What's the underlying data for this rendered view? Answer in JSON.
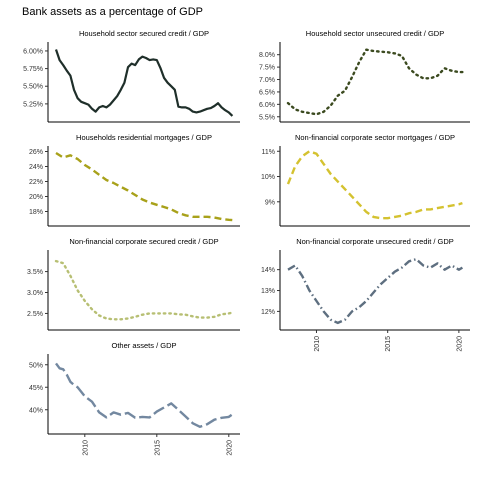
{
  "chart_data": {
    "type": "line",
    "title": "Bank assets as a percentage of GDP",
    "x_ticks": [
      "2010",
      "2015",
      "2020"
    ],
    "x_range": [
      2008,
      2020.5
    ],
    "panels": [
      {
        "title": "Household sector secured credit / GDP",
        "color": "#1f2f2a",
        "dash": "solid",
        "ylim": [
          5.05,
          6.07
        ],
        "y_ticks": [
          5.25,
          5.5,
          5.75,
          6.0
        ],
        "y_tick_labels": [
          "5.25%",
          "5.50%",
          "5.75%",
          "6.00%"
        ],
        "x": [
          2008.0,
          2008.25,
          2008.5,
          2008.75,
          2009.0,
          2009.25,
          2009.5,
          2009.75,
          2010.0,
          2010.25,
          2010.5,
          2010.75,
          2011.0,
          2011.25,
          2011.5,
          2011.75,
          2012.0,
          2012.25,
          2012.5,
          2012.75,
          2013.0,
          2013.25,
          2013.5,
          2013.75,
          2014.0,
          2014.25,
          2014.5,
          2014.75,
          2015.0,
          2015.25,
          2015.5,
          2015.75,
          2016.0,
          2016.25,
          2016.5,
          2016.75,
          2017.0,
          2017.25,
          2017.5,
          2017.75,
          2018.0,
          2018.25,
          2018.5,
          2018.75,
          2019.0,
          2019.25,
          2019.5,
          2019.75,
          2020.0,
          2020.25
        ],
        "values": [
          6.02,
          5.87,
          5.8,
          5.72,
          5.65,
          5.45,
          5.33,
          5.28,
          5.26,
          5.24,
          5.18,
          5.14,
          5.2,
          5.22,
          5.2,
          5.24,
          5.3,
          5.36,
          5.45,
          5.55,
          5.77,
          5.82,
          5.8,
          5.88,
          5.92,
          5.9,
          5.87,
          5.88,
          5.87,
          5.76,
          5.62,
          5.55,
          5.5,
          5.45,
          5.21,
          5.2,
          5.2,
          5.18,
          5.14,
          5.13,
          5.14,
          5.16,
          5.18,
          5.19,
          5.22,
          5.26,
          5.2,
          5.16,
          5.13,
          5.08
        ]
      },
      {
        "title": "Household sector unsecured credit / GDP",
        "color": "#3b4a1f",
        "dash": "dotted",
        "ylim": [
          5.45,
          8.35
        ],
        "y_ticks": [
          5.5,
          6.0,
          6.5,
          7.0,
          7.5,
          8.0
        ],
        "y_tick_labels": [
          "5.5%",
          "6.0%",
          "6.5%",
          "7.0%",
          "7.5%",
          "8.0%"
        ],
        "x": [
          2008.0,
          2008.5,
          2009.0,
          2009.5,
          2010.0,
          2010.5,
          2011.0,
          2011.5,
          2012.0,
          2012.5,
          2013.0,
          2013.5,
          2014.0,
          2014.5,
          2015.0,
          2015.5,
          2016.0,
          2016.5,
          2017.0,
          2017.5,
          2018.0,
          2018.5,
          2019.0,
          2019.5,
          2020.0,
          2020.25
        ],
        "values": [
          6.05,
          5.8,
          5.7,
          5.65,
          5.6,
          5.7,
          5.95,
          6.35,
          6.55,
          7.1,
          7.7,
          8.2,
          8.15,
          8.12,
          8.1,
          8.05,
          7.95,
          7.45,
          7.2,
          7.05,
          7.05,
          7.15,
          7.45,
          7.35,
          7.3,
          7.3
        ]
      },
      {
        "title": "Households residential mortgages / GDP",
        "color": "#a8a11a",
        "dash": "dashed",
        "ylim": [
          16.6,
          26.2
        ],
        "y_ticks": [
          18,
          20,
          22,
          24,
          26
        ],
        "y_tick_labels": [
          "18%",
          "20%",
          "22%",
          "24%",
          "26%"
        ],
        "x": [
          2008.0,
          2008.5,
          2009.0,
          2009.5,
          2010.0,
          2010.5,
          2011.0,
          2011.5,
          2012.0,
          2012.5,
          2013.0,
          2013.5,
          2014.0,
          2014.5,
          2015.0,
          2015.5,
          2016.0,
          2016.5,
          2017.0,
          2017.5,
          2018.0,
          2018.5,
          2019.0,
          2019.5,
          2020.0,
          2020.25
        ],
        "values": [
          25.8,
          25.2,
          25.5,
          25.0,
          24.2,
          23.6,
          22.9,
          22.2,
          21.8,
          21.3,
          20.8,
          20.2,
          19.6,
          19.2,
          18.9,
          18.6,
          18.3,
          17.8,
          17.5,
          17.3,
          17.3,
          17.3,
          17.2,
          17.0,
          16.9,
          16.85
        ]
      },
      {
        "title": "Non-financial corporate sector mortgages / GDP",
        "color": "#d4c230",
        "dash": "dashed",
        "ylim": [
          8.2,
          11.05
        ],
        "y_ticks": [
          9,
          10,
          11
        ],
        "y_tick_labels": [
          "9%",
          "10%",
          "11%"
        ],
        "x": [
          2008.0,
          2008.5,
          2009.0,
          2009.5,
          2010.0,
          2010.5,
          2011.0,
          2011.5,
          2012.0,
          2012.5,
          2013.0,
          2013.5,
          2014.0,
          2014.5,
          2015.0,
          2015.5,
          2016.0,
          2016.5,
          2017.0,
          2017.5,
          2018.0,
          2018.5,
          2019.0,
          2019.5,
          2020.0,
          2020.25
        ],
        "values": [
          9.7,
          10.4,
          10.8,
          11.0,
          10.9,
          10.5,
          10.1,
          9.8,
          9.5,
          9.2,
          8.9,
          8.6,
          8.4,
          8.35,
          8.35,
          8.4,
          8.45,
          8.55,
          8.6,
          8.7,
          8.7,
          8.75,
          8.8,
          8.85,
          8.9,
          8.95
        ]
      },
      {
        "title": "Non-financial corporate secured credit / GDP",
        "color": "#b7bf73",
        "dash": "dotted",
        "ylim": [
          2.2,
          3.92
        ],
        "y_ticks": [
          2.5,
          3.0,
          3.5
        ],
        "y_tick_labels": [
          "2.5%",
          "3.0%",
          "3.5%"
        ],
        "x": [
          2008.0,
          2008.5,
          2009.0,
          2009.5,
          2010.0,
          2010.5,
          2011.0,
          2011.5,
          2012.0,
          2012.5,
          2013.0,
          2013.5,
          2014.0,
          2014.5,
          2015.0,
          2015.5,
          2016.0,
          2016.5,
          2017.0,
          2017.5,
          2018.0,
          2018.5,
          2019.0,
          2019.5,
          2020.0,
          2020.25
        ],
        "values": [
          3.75,
          3.7,
          3.4,
          3.05,
          2.8,
          2.6,
          2.45,
          2.38,
          2.36,
          2.36,
          2.38,
          2.42,
          2.47,
          2.5,
          2.5,
          2.5,
          2.5,
          2.48,
          2.47,
          2.43,
          2.4,
          2.4,
          2.42,
          2.48,
          2.5,
          2.52
        ]
      },
      {
        "title": "Non-financial corporate unsecured credit / GDP",
        "color": "#5e6f80",
        "dash": "dotdash",
        "ylim": [
          11.3,
          14.75
        ],
        "y_ticks": [
          12,
          13,
          14
        ],
        "y_tick_labels": [
          "12%",
          "13%",
          "14%"
        ],
        "x": [
          2008.0,
          2008.5,
          2009.0,
          2009.5,
          2010.0,
          2010.5,
          2011.0,
          2011.5,
          2012.0,
          2012.5,
          2013.0,
          2013.5,
          2014.0,
          2014.5,
          2015.0,
          2015.5,
          2016.0,
          2016.5,
          2017.0,
          2017.5,
          2018.0,
          2018.5,
          2019.0,
          2019.5,
          2020.0,
          2020.25
        ],
        "values": [
          14.0,
          14.2,
          13.7,
          13.0,
          12.5,
          12.0,
          11.6,
          11.45,
          11.6,
          12.0,
          12.2,
          12.5,
          12.9,
          13.3,
          13.6,
          13.9,
          14.1,
          14.4,
          14.5,
          14.2,
          14.1,
          14.3,
          14.0,
          14.2,
          14.0,
          14.1
        ]
      },
      {
        "title": "Other assets / GDP",
        "color": "#7388a0",
        "dash": "longdash",
        "ylim": [
          35.5,
          51.5
        ],
        "y_ticks": [
          40,
          45,
          50
        ],
        "y_tick_labels": [
          "40%",
          "45%",
          "50%"
        ],
        "x": [
          2008.0,
          2008.25,
          2008.5,
          2008.75,
          2009.0,
          2009.25,
          2009.5,
          2009.75,
          2010.0,
          2010.5,
          2011.0,
          2011.5,
          2012.0,
          2012.5,
          2013.0,
          2013.5,
          2014.0,
          2014.5,
          2015.0,
          2015.5,
          2016.0,
          2016.5,
          2017.0,
          2017.5,
          2018.0,
          2018.5,
          2019.0,
          2019.5,
          2020.0,
          2020.25
        ],
        "values": [
          50.3,
          49.2,
          49.0,
          47.8,
          46.2,
          45.5,
          45.0,
          44.0,
          43.0,
          41.8,
          39.4,
          38.3,
          39.4,
          38.9,
          39.3,
          38.2,
          38.4,
          38.3,
          39.6,
          40.5,
          41.4,
          40.0,
          38.5,
          37.0,
          36.2,
          36.8,
          37.8,
          38.2,
          38.4,
          39.0
        ]
      }
    ]
  }
}
